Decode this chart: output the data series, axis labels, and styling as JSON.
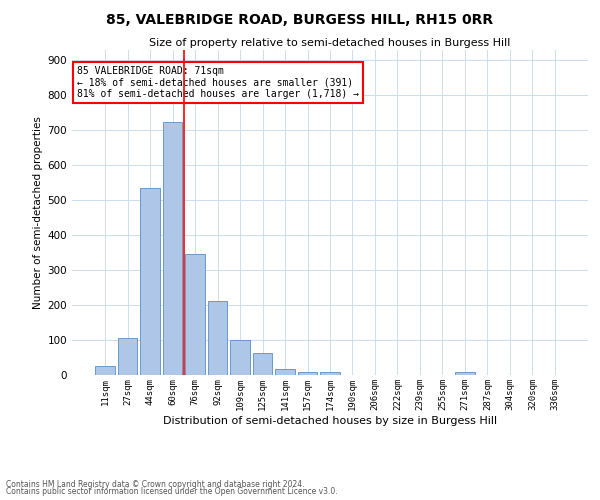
{
  "title1": "85, VALEBRIDGE ROAD, BURGESS HILL, RH15 0RR",
  "title2": "Size of property relative to semi-detached houses in Burgess Hill",
  "xlabel": "Distribution of semi-detached houses by size in Burgess Hill",
  "ylabel": "Number of semi-detached properties",
  "footnote1": "Contains HM Land Registry data © Crown copyright and database right 2024.",
  "footnote2": "Contains public sector information licensed under the Open Government Licence v3.0.",
  "bar_labels": [
    "11sqm",
    "27sqm",
    "44sqm",
    "60sqm",
    "76sqm",
    "92sqm",
    "109sqm",
    "125sqm",
    "141sqm",
    "157sqm",
    "174sqm",
    "190sqm",
    "206sqm",
    "222sqm",
    "239sqm",
    "255sqm",
    "271sqm",
    "287sqm",
    "304sqm",
    "320sqm",
    "336sqm"
  ],
  "bar_values": [
    25,
    105,
    535,
    725,
    345,
    212,
    100,
    62,
    17,
    10,
    10,
    0,
    0,
    0,
    0,
    0,
    8,
    0,
    0,
    0,
    0
  ],
  "bar_color": "#aec6e8",
  "bar_edge_color": "#5a8fc0",
  "grid_color": "#ccddee",
  "subject_line_color": "red",
  "annotation_text": "85 VALEBRIDGE ROAD: 71sqm\n← 18% of semi-detached houses are smaller (391)\n81% of semi-detached houses are larger (1,718) →",
  "annotation_box_color": "white",
  "annotation_box_edge": "red",
  "ylim": [
    0,
    930
  ],
  "yticks": [
    0,
    100,
    200,
    300,
    400,
    500,
    600,
    700,
    800,
    900
  ],
  "subject_bar_index": 3,
  "vline_position": 3.5
}
